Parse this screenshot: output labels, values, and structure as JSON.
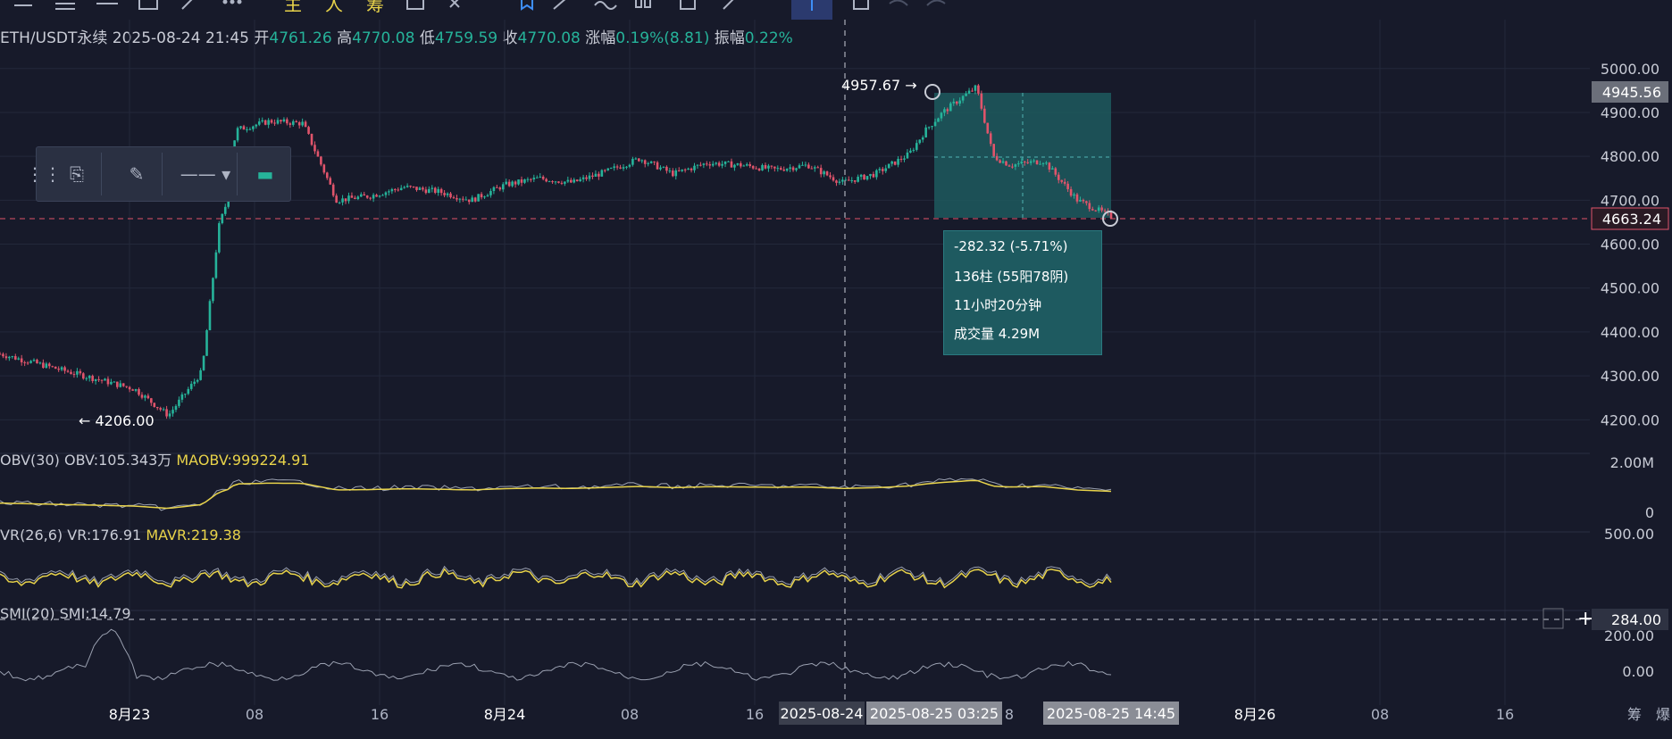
{
  "toolbar": {
    "icons": [
      "menu-icon",
      "list-icon",
      "minus-icon",
      "square-icon",
      "trend-line-icon",
      "more-icon",
      "main-chart-icon",
      "person-icon",
      "chip-icon",
      "indicator-icon",
      "compare-icon",
      "bookmark-icon",
      "brush-icon",
      "wave-icon",
      "candles-icon",
      "calendar-icon",
      "pencil-icon",
      "tool-active-icon",
      "clipboard-icon",
      "undo-icon",
      "redo-icon"
    ],
    "labels": {
      "main": "主",
      "person": "人",
      "chip": "筹"
    }
  },
  "header": {
    "symbol": "ETH/USDT永续",
    "datetime": "2025-08-24 21:45",
    "open_label": "开",
    "open": "4761.26",
    "high_label": "高",
    "high": "4770.08",
    "low_label": "低",
    "low": "4759.59",
    "close_label": "收",
    "close": "4770.08",
    "change_label": "涨幅",
    "change": "0.19%(8.81)",
    "amplitude_label": "振幅",
    "amplitude": "0.22%"
  },
  "annotations": {
    "high_marker": "4957.67 →",
    "low_marker": "← 4206.00",
    "current_price_badge": "4663.24",
    "crosshair_price_badge": "4945.56"
  },
  "measure_box": {
    "change": "-282.32 (-5.71%)",
    "bars": "136柱 (55阳78阴)",
    "duration": "11小时20分钟",
    "volume": "成交量 4.29M"
  },
  "indicators": {
    "obv": {
      "name": "OBV(30)",
      "value": "OBV:105.343万",
      "ma": "MAOBV:999224.91",
      "axis": [
        "2.00M",
        "0"
      ]
    },
    "vr": {
      "name": "VR(26,6)",
      "value": "VR:176.91",
      "ma": "MAVR:219.38",
      "axis": [
        "500.00"
      ]
    },
    "smi": {
      "name": "SMI(20)",
      "value": "SMI:14.79",
      "axis": [
        "200.00",
        "0.00"
      ],
      "dashed_badge": "284.00"
    }
  },
  "time_axis": {
    "labels": [
      "8月23",
      "08",
      "16",
      "8月24",
      "08",
      "16",
      "8月26",
      "08",
      "16"
    ],
    "crosshair_label": "2025-08-24",
    "measure_start_label": "2025-08-25 03:25",
    "measure_end_label": "2025-08-25 14:45",
    "hidden_tick": "8",
    "corner_labels": [
      "筹",
      "爆"
    ]
  },
  "colors": {
    "background": "#171a2a",
    "up": "#26b39a",
    "down": "#e0546b",
    "ma_line": "#e8d34a",
    "indicator_line": "#9aa0b0",
    "measure_fill": "#1e5a60",
    "price_line": "#e0546b"
  },
  "chart_data": {
    "type": "line",
    "title": "",
    "price_axis_ticks": [
      5000,
      4900,
      4800,
      4700,
      4600,
      4500,
      4400,
      4300,
      4200
    ],
    "ylim": [
      4160,
      5030
    ],
    "series": [
      {
        "name": "",
        "x": [
          0,
          0.04,
          0.08,
          0.1,
          0.12,
          0.13,
          0.135,
          0.14,
          0.16,
          0.18,
          0.2,
          0.22,
          0.24,
          0.26,
          0.28,
          0.3,
          0.32,
          0.34,
          0.36,
          0.38,
          0.4,
          0.42,
          0.44,
          0.46,
          0.48,
          0.5,
          0.52,
          0.54,
          0.55,
          0.56,
          0.57,
          0.58,
          0.59,
          0.6,
          0.62,
          0.64,
          0.66
        ],
        "values": [
          4350,
          4310,
          4270,
          4210,
          4310,
          4640,
          4700,
          4860,
          4880,
          4875,
          4700,
          4710,
          4730,
          4720,
          4700,
          4735,
          4750,
          4740,
          4765,
          4795,
          4760,
          4785,
          4780,
          4770,
          4780,
          4740,
          4760,
          4805,
          4860,
          4900,
          4930,
          4957.67,
          4800,
          4780,
          4790,
          4700,
          4663.24
        ]
      }
    ]
  }
}
